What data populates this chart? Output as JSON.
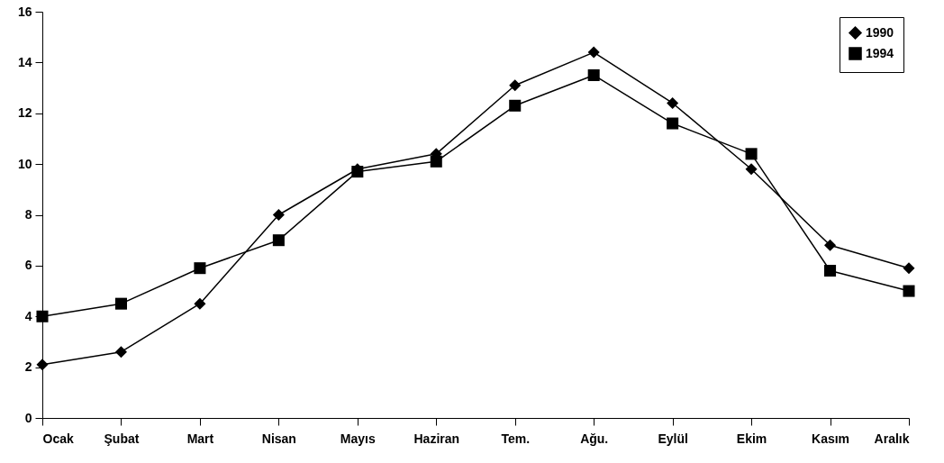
{
  "chart_data": {
    "type": "line",
    "categories": [
      "Ocak",
      "Şubat",
      "Mart",
      "Nisan",
      "Mayıs",
      "Haziran",
      "Tem.",
      "Ağu.",
      "Eylül",
      "Ekim",
      "Kasım",
      "Aralık"
    ],
    "series": [
      {
        "name": "1990",
        "color": "#000000",
        "marker": "diamond",
        "values": [
          2.1,
          2.6,
          4.5,
          8.0,
          9.8,
          10.4,
          13.1,
          14.4,
          12.4,
          9.8,
          6.8,
          5.9
        ]
      },
      {
        "name": "1994",
        "color": "#000000",
        "marker": "square",
        "values": [
          4.0,
          4.5,
          5.9,
          7.0,
          9.7,
          10.1,
          12.3,
          13.5,
          11.6,
          10.4,
          5.8,
          5.0
        ]
      }
    ],
    "ylim": [
      0,
      16
    ],
    "yticks": [
      0,
      2,
      4,
      6,
      8,
      10,
      12,
      14,
      16
    ],
    "grid": false,
    "legend": "top right"
  }
}
